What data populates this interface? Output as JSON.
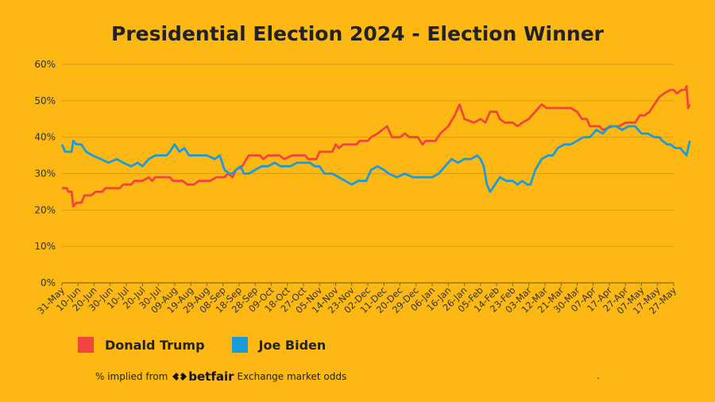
{
  "chart_data": {
    "type": "line",
    "title": "Presidential Election 2024 - Election Winner",
    "ylim": [
      0,
      60
    ],
    "yticks": [
      "0%",
      "10%",
      "20%",
      "30%",
      "40%",
      "50%",
      "60%"
    ],
    "ytick_values": [
      0,
      10,
      20,
      30,
      40,
      50,
      60
    ],
    "grid": true,
    "legend_position": "bottom-left",
    "x_ticks": [
      "31-May",
      "10-Jun",
      "20-Jun",
      "30-Jun",
      "10-Jul",
      "20-Jul",
      "30-Jul",
      "09-Aug",
      "19-Aug",
      "29-Aug",
      "08-Sep",
      "18-Sep",
      "28-Sep",
      "09-Oct",
      "18-Oct",
      "27-Oct",
      "05-Nov",
      "14-Nov",
      "23-Nov",
      "02-Dec",
      "11-Dec",
      "20-Dec",
      "29-Dec",
      "06-Jan",
      "16-Jan",
      "26-Jan",
      "05-Feb",
      "14-Feb",
      "23-Feb",
      "03-Mar",
      "12-Mar",
      "21-Mar",
      "30-Mar",
      "07-Apr",
      "17-Apr",
      "27-Apr",
      "07-May",
      "17-May",
      "27-May"
    ],
    "series": [
      {
        "name": "Donald Trump",
        "color": "#F2453D",
        "points": [
          [
            0,
            26
          ],
          [
            0.3,
            26
          ],
          [
            0.4,
            25
          ],
          [
            0.6,
            25
          ],
          [
            0.7,
            21
          ],
          [
            0.9,
            22
          ],
          [
            1.2,
            22
          ],
          [
            1.4,
            24
          ],
          [
            1.8,
            24
          ],
          [
            2.1,
            25
          ],
          [
            2.5,
            25
          ],
          [
            2.7,
            26
          ],
          [
            3.5,
            26
          ],
          [
            3.6,
            26
          ],
          [
            3.8,
            27
          ],
          [
            4.3,
            27
          ],
          [
            4.5,
            28
          ],
          [
            5.0,
            28
          ],
          [
            5.4,
            29
          ],
          [
            5.6,
            28
          ],
          [
            5.8,
            29
          ],
          [
            6.7,
            29
          ],
          [
            6.9,
            28
          ],
          [
            7.5,
            28
          ],
          [
            7.8,
            27
          ],
          [
            8.2,
            27
          ],
          [
            8.5,
            28
          ],
          [
            9.2,
            28
          ],
          [
            9.6,
            29
          ],
          [
            10.1,
            29
          ],
          [
            10.3,
            30
          ],
          [
            10.6,
            29
          ],
          [
            10.8,
            31
          ],
          [
            11.2,
            32
          ],
          [
            11.6,
            35
          ],
          [
            12.3,
            35
          ],
          [
            12.5,
            34
          ],
          [
            12.8,
            35
          ],
          [
            13.5,
            35
          ],
          [
            13.8,
            34
          ],
          [
            14.3,
            35
          ],
          [
            14.6,
            35
          ],
          [
            15.1,
            35
          ],
          [
            15.3,
            34
          ],
          [
            15.8,
            34
          ],
          [
            16.0,
            36
          ],
          [
            16.8,
            36
          ],
          [
            17.0,
            38
          ],
          [
            17.2,
            37
          ],
          [
            17.5,
            38
          ],
          [
            18.3,
            38
          ],
          [
            18.5,
            39
          ],
          [
            19.0,
            39
          ],
          [
            19.2,
            40
          ],
          [
            19.6,
            41
          ],
          [
            20.2,
            43
          ],
          [
            20.5,
            40
          ],
          [
            21.0,
            40
          ],
          [
            21.3,
            41
          ],
          [
            21.6,
            40
          ],
          [
            22.1,
            40
          ],
          [
            22.4,
            38
          ],
          [
            22.6,
            39
          ],
          [
            23.2,
            39
          ],
          [
            23.5,
            41
          ],
          [
            24.0,
            43
          ],
          [
            24.4,
            46
          ],
          [
            24.7,
            49
          ],
          [
            25.0,
            45
          ],
          [
            25.6,
            44
          ],
          [
            26.0,
            45
          ],
          [
            26.3,
            44
          ],
          [
            26.6,
            47
          ],
          [
            27.0,
            47
          ],
          [
            27.2,
            45
          ],
          [
            27.5,
            44
          ],
          [
            28.0,
            44
          ],
          [
            28.3,
            43
          ],
          [
            28.6,
            44
          ],
          [
            29.0,
            45
          ],
          [
            29.4,
            47
          ],
          [
            29.8,
            49
          ],
          [
            30.1,
            48
          ],
          [
            30.6,
            48
          ],
          [
            31.0,
            48
          ],
          [
            31.6,
            48
          ],
          [
            32.0,
            47
          ],
          [
            32.3,
            45
          ],
          [
            32.6,
            45
          ],
          [
            32.8,
            43
          ],
          [
            33.4,
            43
          ],
          [
            33.6,
            42
          ],
          [
            34.2,
            43
          ],
          [
            34.6,
            43
          ],
          [
            35.0,
            44
          ],
          [
            35.6,
            44
          ],
          [
            35.9,
            46
          ],
          [
            36.2,
            46
          ],
          [
            36.5,
            47
          ],
          [
            36.8,
            49
          ],
          [
            37.1,
            51
          ],
          [
            37.4,
            52
          ],
          [
            37.8,
            53
          ],
          [
            38.0,
            53
          ],
          [
            38.2,
            52
          ],
          [
            38.5,
            53
          ],
          [
            38.7,
            53
          ],
          [
            38.8,
            54
          ],
          [
            38.9,
            48
          ],
          [
            39.0,
            49
          ]
        ]
      },
      {
        "name": "Joe Biden",
        "color": "#1C9BDB",
        "points": [
          [
            0,
            38
          ],
          [
            0.2,
            36
          ],
          [
            0.6,
            36
          ],
          [
            0.7,
            39
          ],
          [
            0.9,
            38
          ],
          [
            1.2,
            38
          ],
          [
            1.5,
            36
          ],
          [
            1.9,
            35
          ],
          [
            2.4,
            34
          ],
          [
            2.9,
            33
          ],
          [
            3.4,
            34
          ],
          [
            3.8,
            33
          ],
          [
            4.3,
            32
          ],
          [
            4.7,
            33
          ],
          [
            5.0,
            32
          ],
          [
            5.4,
            34
          ],
          [
            5.8,
            35
          ],
          [
            6.5,
            35
          ],
          [
            6.7,
            36
          ],
          [
            7.0,
            38
          ],
          [
            7.3,
            36
          ],
          [
            7.6,
            37
          ],
          [
            7.9,
            35
          ],
          [
            8.5,
            35
          ],
          [
            9.0,
            35
          ],
          [
            9.5,
            34
          ],
          [
            9.8,
            35
          ],
          [
            10.1,
            31
          ],
          [
            10.4,
            30
          ],
          [
            10.6,
            30
          ],
          [
            10.8,
            31
          ],
          [
            11.1,
            32
          ],
          [
            11.3,
            30
          ],
          [
            11.6,
            30
          ],
          [
            12.0,
            31
          ],
          [
            12.4,
            32
          ],
          [
            12.8,
            32
          ],
          [
            13.2,
            33
          ],
          [
            13.6,
            32
          ],
          [
            14.2,
            32
          ],
          [
            14.6,
            33
          ],
          [
            15.0,
            33
          ],
          [
            15.4,
            33
          ],
          [
            15.7,
            32
          ],
          [
            16.0,
            32
          ],
          [
            16.3,
            30
          ],
          [
            16.8,
            30
          ],
          [
            17.2,
            29
          ],
          [
            17.6,
            28
          ],
          [
            18.0,
            27
          ],
          [
            18.4,
            28
          ],
          [
            18.9,
            28
          ],
          [
            19.2,
            31
          ],
          [
            19.6,
            32
          ],
          [
            20.0,
            31
          ],
          [
            20.3,
            30
          ],
          [
            20.8,
            29
          ],
          [
            21.3,
            30
          ],
          [
            21.8,
            29
          ],
          [
            22.2,
            29
          ],
          [
            22.6,
            29
          ],
          [
            23.0,
            29
          ],
          [
            23.4,
            30
          ],
          [
            23.8,
            32
          ],
          [
            24.2,
            34
          ],
          [
            24.6,
            33
          ],
          [
            25.0,
            34
          ],
          [
            25.4,
            34
          ],
          [
            25.8,
            35
          ],
          [
            26.0,
            34
          ],
          [
            26.2,
            32
          ],
          [
            26.4,
            27
          ],
          [
            26.6,
            25
          ],
          [
            26.9,
            27
          ],
          [
            27.2,
            29
          ],
          [
            27.6,
            28
          ],
          [
            28.0,
            28
          ],
          [
            28.3,
            27
          ],
          [
            28.6,
            28
          ],
          [
            28.9,
            27
          ],
          [
            29.1,
            27
          ],
          [
            29.4,
            31
          ],
          [
            29.8,
            34
          ],
          [
            30.2,
            35
          ],
          [
            30.5,
            35
          ],
          [
            30.8,
            37
          ],
          [
            31.2,
            38
          ],
          [
            31.6,
            38
          ],
          [
            32.0,
            39
          ],
          [
            32.4,
            40
          ],
          [
            32.8,
            40
          ],
          [
            33.2,
            42
          ],
          [
            33.6,
            41
          ],
          [
            34.0,
            43
          ],
          [
            34.4,
            43
          ],
          [
            34.8,
            42
          ],
          [
            35.2,
            43
          ],
          [
            35.6,
            43
          ],
          [
            36.0,
            41
          ],
          [
            36.4,
            41
          ],
          [
            36.8,
            40
          ],
          [
            37.1,
            40
          ],
          [
            37.3,
            39
          ],
          [
            37.6,
            38
          ],
          [
            37.8,
            38
          ],
          [
            38.1,
            37
          ],
          [
            38.4,
            37
          ],
          [
            38.6,
            36
          ],
          [
            38.8,
            35
          ],
          [
            38.9,
            37
          ],
          [
            39.0,
            39
          ]
        ]
      }
    ]
  },
  "legend": [
    {
      "label": "Donald Trump",
      "color": "#F2453D"
    },
    {
      "label": "Joe Biden",
      "color": "#1C9BDB"
    }
  ],
  "footer": {
    "prefix": "% implied from",
    "brand": "betfair",
    "suffix": "Exchange market odds",
    "dot": "."
  }
}
